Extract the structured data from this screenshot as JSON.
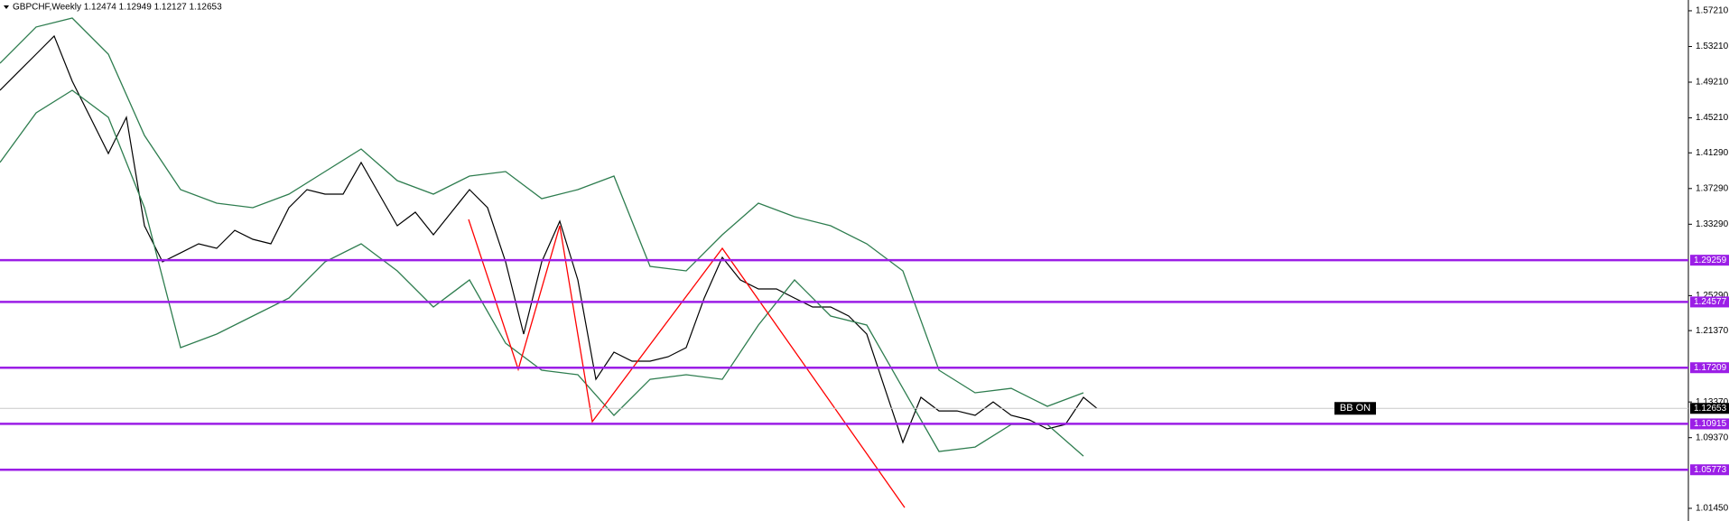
{
  "chart_data": {
    "type": "line",
    "title": "GBPCHF,Weekly  1.12474 1.12949 1.12127 1.12653",
    "annotation": "BB ON",
    "xlim": [
      0,
      93.5
    ],
    "ylim": [
      1.0003,
      1.5842
    ],
    "yticks": [
      {
        "value": 1.5721,
        "label": "1.57210"
      },
      {
        "value": 1.5321,
        "label": "1.53210"
      },
      {
        "value": 1.4921,
        "label": "1.49210"
      },
      {
        "value": 1.4521,
        "label": "1.45210"
      },
      {
        "value": 1.4129,
        "label": "1.41290"
      },
      {
        "value": 1.3729,
        "label": "1.37290"
      },
      {
        "value": 1.3329,
        "label": "1.33290"
      },
      {
        "value": 1.2529,
        "label": "1.25290"
      },
      {
        "value": 1.2137,
        "label": "1.21370"
      },
      {
        "value": 1.1337,
        "label": "1.13370"
      },
      {
        "value": 1.0937,
        "label": "1.09370"
      },
      {
        "value": 1.0145,
        "label": "1.01450"
      }
    ],
    "levels": [
      1.29259,
      1.24577,
      1.17209,
      1.10915,
      1.05773
    ],
    "level_color": "#9b1ee6",
    "current_price": 1.12653,
    "series": [
      {
        "color": "#000000",
        "x": [
          0,
          1,
          2,
          3,
          4,
          5,
          6,
          7,
          8,
          9,
          10,
          11,
          12,
          13,
          14,
          15,
          16,
          17,
          18,
          19,
          20,
          21,
          22,
          23,
          24,
          25,
          26,
          27,
          28,
          29,
          30,
          31,
          32,
          33,
          34,
          35,
          36,
          37,
          38,
          39,
          40,
          41,
          42,
          43,
          44,
          45,
          46,
          47,
          48,
          49,
          50,
          51,
          52,
          53,
          54,
          55,
          56,
          57,
          58,
          59,
          60,
          60.75
        ],
        "values": [
          1.483,
          1.5033,
          1.5235,
          1.5438,
          1.4932,
          1.4527,
          1.4122,
          1.4527,
          1.3312,
          1.2907,
          1.3008,
          1.311,
          1.3059,
          1.3261,
          1.316,
          1.311,
          1.3515,
          1.3717,
          1.3666,
          1.3666,
          1.4021,
          1.3666,
          1.3312,
          1.3464,
          1.3211,
          1.3464,
          1.3717,
          1.3515,
          1.2907,
          1.2098,
          1.2907,
          1.3363,
          1.2705,
          1.1591,
          1.1895,
          1.1794,
          1.1794,
          1.1844,
          1.1946,
          1.2502,
          1.2958,
          1.2705,
          1.2604,
          1.2604,
          1.2502,
          1.2401,
          1.2401,
          1.23,
          1.2098,
          1.149,
          1.0883,
          1.1389,
          1.1237,
          1.1237,
          1.1187,
          1.1338,
          1.1187,
          1.1136,
          1.1035,
          1.1085,
          1.1389,
          1.12653
        ]
      },
      {
        "color": "#2e7d4f",
        "x": [
          0,
          2,
          4,
          6,
          8,
          10,
          12,
          14,
          16,
          18,
          20,
          22,
          24,
          26,
          28,
          30,
          32,
          34,
          36,
          38,
          40,
          42,
          44,
          46,
          48,
          50,
          52,
          54,
          56,
          58,
          60
        ],
        "values": [
          1.5134,
          1.5539,
          1.564,
          1.5235,
          1.4324,
          1.3717,
          1.3565,
          1.3515,
          1.3666,
          1.3919,
          1.4172,
          1.3818,
          1.3666,
          1.3869,
          1.3919,
          1.3616,
          1.3717,
          1.3869,
          1.2857,
          1.2806,
          1.3211,
          1.3565,
          1.3413,
          1.3312,
          1.311,
          1.2806,
          1.1693,
          1.144,
          1.149,
          1.1288,
          1.144
        ]
      },
      {
        "color": "#2e7d4f",
        "x": [
          0,
          2,
          4,
          6,
          8,
          10,
          12,
          14,
          16,
          18,
          20,
          22,
          24,
          26,
          28,
          30,
          32,
          34,
          36,
          38,
          40,
          42,
          44,
          46,
          48,
          50,
          52,
          54,
          56,
          58,
          60
        ],
        "values": [
          1.4021,
          1.4577,
          1.483,
          1.4527,
          1.3515,
          1.1946,
          1.2098,
          1.23,
          1.2502,
          1.2907,
          1.311,
          1.2806,
          1.2401,
          1.2705,
          1.1996,
          1.1693,
          1.1642,
          1.1187,
          1.1591,
          1.1642,
          1.1591,
          1.2199,
          1.2705,
          1.23,
          1.2199,
          1.149,
          1.0782,
          1.0832,
          1.1085,
          1.1085,
          1.0731
        ]
      },
      {
        "color": "#ff0000",
        "x": [
          25.95,
          28.7,
          31,
          32.8,
          40,
          50.1
        ],
        "values": [
          1.3383,
          1.1703,
          1.3312,
          1.1116,
          1.3059,
          1.0154
        ]
      }
    ]
  }
}
